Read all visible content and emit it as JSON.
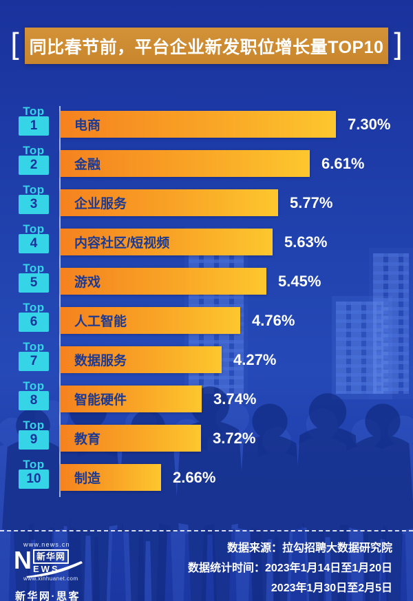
{
  "banner": {
    "bracket_left": "[",
    "title": "同比春节前，平台企业新发职位增长量TOP10",
    "bracket_right": "]"
  },
  "chart_data": {
    "type": "bar",
    "orientation": "horizontal",
    "title": "同比春节前，平台企业新发职位增长量TOP10",
    "rank_prefix": "Top",
    "ranks": [
      "1",
      "2",
      "3",
      "4",
      "5",
      "6",
      "7",
      "8",
      "9",
      "10"
    ],
    "categories": [
      "电商",
      "金融",
      "企业服务",
      "内容社区/短视频",
      "游戏",
      "人工智能",
      "数据服务",
      "智能硬件",
      "教育",
      "制造"
    ],
    "values": [
      7.3,
      6.61,
      5.77,
      5.63,
      5.45,
      4.76,
      4.27,
      3.74,
      3.72,
      2.66
    ],
    "value_labels": [
      "7.30%",
      "6.61%",
      "5.77%",
      "5.63%",
      "5.45%",
      "4.76%",
      "4.27%",
      "3.74%",
      "3.72%",
      "2.66%"
    ],
    "unit": "%",
    "xlim": [
      0,
      7.3
    ],
    "grid": false,
    "legend": null,
    "bar_gradient": [
      "#f5821f",
      "#fdc72e"
    ],
    "badge_color": "#35d4e6",
    "bar_label_color": "#1d3a92",
    "value_label_color": "#ffffff"
  },
  "footer": {
    "source": "数据来源：拉勾招聘大数据研究院",
    "period_line1": "数据统计时间：2023年1月14日至1月20日",
    "period_line2": "2023年1月30日至2月5日"
  },
  "logo": {
    "url_top": "www.news.cn",
    "n": "N",
    "box": "新华网",
    "ews": "EWS",
    "url_bottom": "www.xinhuanet.com",
    "tagline": "新华网·思客"
  },
  "colors": {
    "background": "#1e3ca8",
    "banner": "#cf8c31",
    "bar_start": "#f5821f",
    "bar_end": "#fdc72e",
    "badge_cyan": "#35d4e6",
    "navy_text": "#1d3a92",
    "white_text": "#ffffff"
  }
}
